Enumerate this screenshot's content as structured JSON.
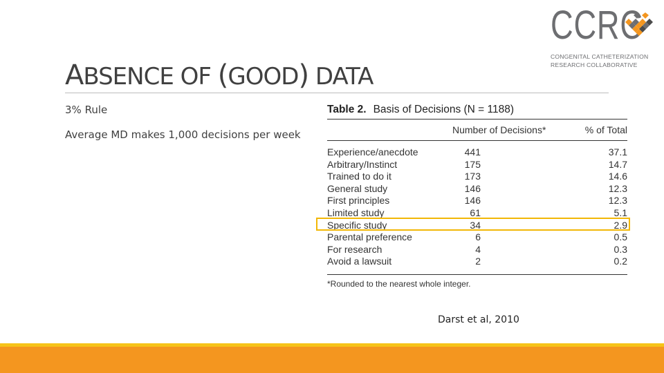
{
  "slide": {
    "title_cap_1": "A",
    "title_rest_1": "BSENCE OF ",
    "title_paren_open": "(",
    "title_rest_2": "GOOD",
    "title_paren_close": ")",
    "title_rest_3": " DATA",
    "bullets": [
      "3% Rule",
      "Average MD makes 1,000 decisions per week"
    ],
    "citation": "Darst et al, 2010"
  },
  "logo": {
    "letters": "CCRC",
    "line1": "CONGENITAL CATHETERIZATION",
    "line2": "RESEARCH COLLABORATIVE",
    "colors": {
      "gray": "#6d6e71",
      "orange": "#f4961f",
      "dark": "#4a4a4a"
    }
  },
  "table": {
    "label": "Table 2.",
    "caption": "Basis of Decisions (N = 1188)",
    "headers": {
      "number": "Number of Decisions*",
      "percent": "% of Total"
    },
    "rows": [
      {
        "basis": "Experience/anecdote",
        "number": "441",
        "percent": "37.1"
      },
      {
        "basis": "Arbitrary/Instinct",
        "number": "175",
        "percent": "14.7"
      },
      {
        "basis": "Trained to do it",
        "number": "173",
        "percent": "14.6"
      },
      {
        "basis": "General study",
        "number": "146",
        "percent": "12.3"
      },
      {
        "basis": "First principles",
        "number": "146",
        "percent": "12.3"
      },
      {
        "basis": "Limited study",
        "number": "61",
        "percent": "5.1"
      },
      {
        "basis": "Specific study",
        "number": "34",
        "percent": "2.9"
      },
      {
        "basis": "Parental preference",
        "number": "6",
        "percent": "0.5"
      },
      {
        "basis": "For research",
        "number": "4",
        "percent": "0.3"
      },
      {
        "basis": "Avoid a lawsuit",
        "number": "2",
        "percent": "0.2"
      }
    ],
    "footnote": "*Rounded to the nearest whole integer.",
    "highlighted_row": "Specific study"
  },
  "colors": {
    "highlight": "#f2b705",
    "band_top": "#f6c319",
    "band": "#f4961f"
  }
}
